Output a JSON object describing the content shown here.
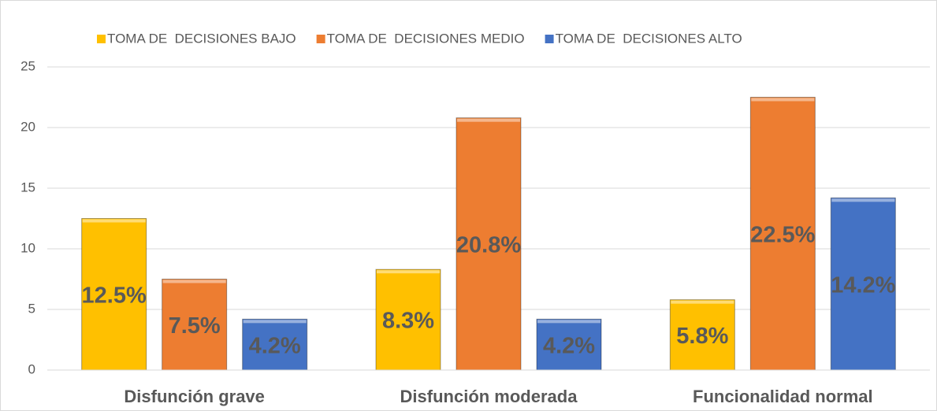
{
  "chart_data": {
    "type": "bar",
    "categories": [
      "Disfunción grave",
      "Disfunción moderada",
      "Funcionalidad normal"
    ],
    "series": [
      {
        "name": "TOMA DE  DECISIONES BAJO",
        "color": "#ffc000",
        "values": [
          12.5,
          8.3,
          5.8
        ],
        "value_labels": [
          "12.5%",
          "8.3%",
          "5.8%"
        ]
      },
      {
        "name": "TOMA DE  DECISIONES MEDIO",
        "color": "#ed7d31",
        "values": [
          7.5,
          20.8,
          22.5
        ],
        "value_labels": [
          "7.5%",
          "20.8%",
          "22.5%"
        ]
      },
      {
        "name": "TOMA DE  DECISIONES ALTO",
        "color": "#4472c4",
        "values": [
          4.2,
          4.2,
          14.2
        ],
        "value_labels": [
          "4.2%",
          "4.2%",
          "14.2%"
        ]
      }
    ],
    "ylim": [
      0,
      25
    ],
    "yticks": [
      0,
      5,
      10,
      15,
      20,
      25
    ],
    "grid": true,
    "legend": "top"
  }
}
